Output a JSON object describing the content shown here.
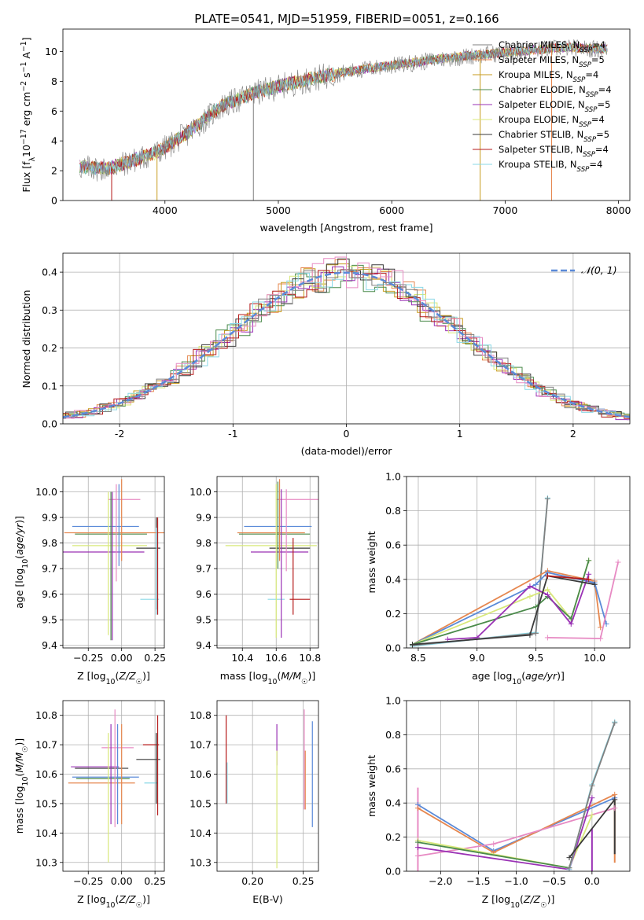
{
  "figure_title": "PLATE=0541, MJD=51959, FIBERID=0051, z=0.166",
  "model_colors": [
    "#808080",
    "#e6874f",
    "#c79b1e",
    "#4a8a4a",
    "#9a32b5",
    "#d8e87a",
    "#3a3a3a",
    "#b51a1a",
    "#8ad8e6"
  ],
  "chart_data": [
    {
      "id": "spectrum",
      "type": "line",
      "xlabel": "wavelength [Angstrom, rest frame]",
      "ylabel": "Flux [f_λ 10^-17 erg cm^-2 s^-1 A^-1]",
      "xlim": [
        3100,
        8100
      ],
      "ylim": [
        0,
        11.5
      ],
      "xticks": [
        4000,
        5000,
        6000,
        7000,
        8000
      ],
      "yticks": [
        0,
        2,
        4,
        6,
        8,
        10
      ],
      "grid": false,
      "legend_position": "top-right",
      "wavelength_range": [
        3250,
        7900
      ],
      "continuum": {
        "x": [
          3250,
          3500,
          3700,
          3900,
          4000,
          4200,
          4500,
          4800,
          5100,
          5400,
          5800,
          6100,
          6500,
          6900,
          7200,
          7500,
          7900
        ],
        "y": [
          2.3,
          2.2,
          2.7,
          3.2,
          3.6,
          4.6,
          6.4,
          7.3,
          7.9,
          8.4,
          8.9,
          9.2,
          9.6,
          9.9,
          10.1,
          10.3,
          10.2
        ]
      },
      "spikes": [
        {
          "x": 3530,
          "ymin": 0,
          "series": 7
        },
        {
          "x": 3930,
          "ymin": 0,
          "series": 2
        },
        {
          "x": 4780,
          "ymin": 0,
          "series": 0
        },
        {
          "x": 6780,
          "ymin": 0,
          "series": 2
        },
        {
          "x": 7410,
          "ymin": 0,
          "series": 1
        }
      ],
      "series": [
        {
          "name": "Chabrier MILES, N",
          "sub": "SSP",
          "suffix": "=4"
        },
        {
          "name": "Salpeter MILES, N",
          "sub": "SSP",
          "suffix": "=5"
        },
        {
          "name": "Kroupa MILES, N",
          "sub": "SSP",
          "suffix": "=4"
        },
        {
          "name": "Chabrier ELODIE, N",
          "sub": "SSP",
          "suffix": "=4"
        },
        {
          "name": "Salpeter ELODIE, N",
          "sub": "SSP",
          "suffix": "=5"
        },
        {
          "name": "Kroupa ELODIE, N",
          "sub": "SSP",
          "suffix": "=4"
        },
        {
          "name": "Chabrier STELIB, N",
          "sub": "SSP",
          "suffix": "=5"
        },
        {
          "name": "Salpeter STELIB, N",
          "sub": "SSP",
          "suffix": "=4"
        },
        {
          "name": "Kroupa STELIB, N",
          "sub": "SSP",
          "suffix": "=4"
        }
      ]
    },
    {
      "id": "residuals",
      "type": "line",
      "xlabel": "(data-model)/error",
      "ylabel": "Normed distribution",
      "xlim": [
        -2.5,
        2.5
      ],
      "ylim": [
        0,
        0.45
      ],
      "xticks": [
        -2,
        -1,
        0,
        1,
        2
      ],
      "yticks": [
        0.0,
        0.1,
        0.2,
        0.3,
        0.4
      ],
      "grid": true,
      "legend_position": "top-right",
      "histogram_bin_width": 0.1,
      "gaussian": {
        "name": "𝒩(0, 1)",
        "mean": 0,
        "sigma": 1,
        "color": "#5a8ad8"
      },
      "histogram_colors": [
        "#e6874f",
        "#c79b1e",
        "#4a8a4a",
        "#9a32b5",
        "#d8e87a",
        "#3a3a3a",
        "#b51a1a",
        "#8ad8e6",
        "#e78ac3",
        "#808080"
      ]
    },
    {
      "id": "age_vs_Z",
      "type": "scatter",
      "xlabel": "Z [log10(Z/Z☉)]",
      "ylabel": "age [log10(age/yr)]",
      "xlim": [
        -0.44,
        0.32
      ],
      "ylim": [
        9.39,
        10.06
      ],
      "xticks": [
        -0.25,
        0.0,
        0.25
      ],
      "xtick_labels": [
        "−0.25",
        "0.00",
        "0.25"
      ],
      "yticks": [
        9.4,
        9.5,
        9.6,
        9.7,
        9.8,
        9.9,
        10.0
      ],
      "grid": true,
      "points": [
        {
          "x": -0.12,
          "xerr": 0.25,
          "y": 9.865,
          "yerr": 0.0,
          "color": "#5a8ad8"
        },
        {
          "x": -0.05,
          "xerr": 0.38,
          "y": 9.84,
          "yerr": 0.0,
          "color": "#e6874f"
        },
        {
          "x": -0.08,
          "xerr": 0.27,
          "y": 9.835,
          "yerr": 0.0,
          "color": "#4a8a4a"
        },
        {
          "x": -0.09,
          "xerr": 0.28,
          "y": 9.79,
          "yerr": 0.0,
          "color": "#d8e87a"
        },
        {
          "x": -0.18,
          "xerr": 0.35,
          "y": 9.765,
          "yerr": 0.0,
          "color": "#9a32b5"
        },
        {
          "x": 0.02,
          "xerr": 0.12,
          "y": 9.97,
          "yerr": 0.0,
          "color": "#e78ac3"
        },
        {
          "x": 0.2,
          "xerr": 0.09,
          "y": 9.78,
          "yerr": 0.0,
          "color": "#3a3a3a"
        },
        {
          "x": 0.21,
          "xerr": 0.07,
          "y": 9.58,
          "yerr": 0.0,
          "color": "#8ad8e6"
        },
        {
          "x": -0.1,
          "xerr": 0.0,
          "y": 9.72,
          "yerr": 0.28,
          "color": "#d8e87a"
        },
        {
          "x": -0.08,
          "xerr": 0.0,
          "y": 9.71,
          "yerr": 0.29,
          "color": "#4a8a4a"
        },
        {
          "x": -0.07,
          "xerr": 0.0,
          "y": 9.71,
          "yerr": 0.29,
          "color": "#9a32b5"
        },
        {
          "x": -0.04,
          "xerr": 0.0,
          "y": 9.84,
          "yerr": 0.19,
          "color": "#e78ac3"
        },
        {
          "x": -0.02,
          "xerr": 0.0,
          "y": 9.87,
          "yerr": 0.16,
          "color": "#5a8ad8"
        },
        {
          "x": 0.0,
          "xerr": 0.0,
          "y": 9.89,
          "yerr": 0.16,
          "color": "#e6874f"
        },
        {
          "x": 0.26,
          "xerr": 0.0,
          "y": 9.72,
          "yerr": 0.18,
          "color": "#3a3a3a"
        },
        {
          "x": 0.27,
          "xerr": 0.0,
          "y": 9.71,
          "yerr": 0.19,
          "color": "#b51a1a"
        },
        {
          "x": 0.26,
          "xerr": 0.0,
          "y": 9.69,
          "yerr": 0.17,
          "color": "#8ad8e6"
        }
      ]
    },
    {
      "id": "age_vs_mass",
      "type": "scatter",
      "xlabel": "mass [log10(M/M☉)]",
      "ylabel": "",
      "xlim": [
        10.25,
        10.85
      ],
      "ylim": [
        9.39,
        10.06
      ],
      "xticks": [
        10.4,
        10.6,
        10.8
      ],
      "xtick_labels": [
        "10.4",
        "10.6",
        "10.8"
      ],
      "yticks": [
        9.4,
        9.5,
        9.6,
        9.7,
        9.8,
        9.9,
        10.0
      ],
      "grid": true,
      "points": [
        {
          "x": 10.61,
          "xerr": 0.2,
          "y": 9.865,
          "yerr": 0.0,
          "color": "#5a8ad8"
        },
        {
          "x": 10.57,
          "xerr": 0.2,
          "y": 9.84,
          "yerr": 0.0,
          "color": "#e6874f"
        },
        {
          "x": 10.59,
          "xerr": 0.21,
          "y": 9.835,
          "yerr": 0.0,
          "color": "#4a8a4a"
        },
        {
          "x": 10.57,
          "xerr": 0.27,
          "y": 9.79,
          "yerr": 0.0,
          "color": "#d8e87a"
        },
        {
          "x": 10.62,
          "xerr": 0.17,
          "y": 9.765,
          "yerr": 0.0,
          "color": "#9a32b5"
        },
        {
          "x": 10.75,
          "xerr": 0.15,
          "y": 9.97,
          "yerr": 0.0,
          "color": "#e78ac3"
        },
        {
          "x": 10.68,
          "xerr": 0.12,
          "y": 9.78,
          "yerr": 0.0,
          "color": "#3a3a3a"
        },
        {
          "x": 10.74,
          "xerr": 0.06,
          "y": 9.58,
          "yerr": 0.0,
          "color": "#b51a1a"
        },
        {
          "x": 10.6,
          "xerr": 0.05,
          "y": 9.58,
          "yerr": 0.0,
          "color": "#8ad8e6"
        },
        {
          "x": 10.6,
          "xerr": 0.0,
          "y": 9.73,
          "yerr": 0.3,
          "color": "#d8e87a"
        },
        {
          "x": 10.61,
          "xerr": 0.0,
          "y": 9.87,
          "yerr": 0.17,
          "color": "#4a8a4a"
        },
        {
          "x": 10.63,
          "xerr": 0.0,
          "y": 9.72,
          "yerr": 0.29,
          "color": "#9a32b5"
        },
        {
          "x": 10.66,
          "xerr": 0.0,
          "y": 9.85,
          "yerr": 0.16,
          "color": "#e78ac3"
        },
        {
          "x": 10.62,
          "xerr": 0.0,
          "y": 9.89,
          "yerr": 0.16,
          "color": "#e6874f"
        },
        {
          "x": 10.7,
          "xerr": 0.0,
          "y": 9.67,
          "yerr": 0.15,
          "color": "#b51a1a"
        }
      ]
    },
    {
      "id": "weight_vs_age",
      "type": "line",
      "xlabel": "age [log10(age/yr)]",
      "ylabel": "mass weight",
      "xlim": [
        8.4,
        10.3
      ],
      "ylim": [
        0,
        1.0
      ],
      "xticks": [
        8.5,
        9.0,
        9.5,
        10.0
      ],
      "xtick_labels": [
        "8.5",
        "9.0",
        "9.5",
        "10.0"
      ],
      "yticks": [
        0.0,
        0.2,
        0.4,
        0.6,
        0.8,
        1.0
      ],
      "grid": true,
      "series": [
        {
          "color": "#8ad8e6",
          "x": [
            8.45,
            9.5,
            9.6
          ],
          "y": [
            0.01,
            0.09,
            0.875
          ]
        },
        {
          "color": "#808080",
          "x": [
            8.45,
            9.5,
            9.6
          ],
          "y": [
            0.015,
            0.085,
            0.87
          ]
        },
        {
          "color": "#e6874f",
          "x": [
            8.45,
            9.6,
            10.0,
            10.05
          ],
          "y": [
            0.02,
            0.45,
            0.39,
            0.12
          ]
        },
        {
          "color": "#5a8ad8",
          "x": [
            8.45,
            9.5,
            9.6,
            10.0,
            10.1
          ],
          "y": [
            0.02,
            0.37,
            0.44,
            0.38,
            0.14
          ]
        },
        {
          "color": "#d8e87a",
          "x": [
            8.45,
            9.45,
            9.6,
            9.8,
            9.95
          ],
          "y": [
            0.02,
            0.3,
            0.34,
            0.17,
            0.51
          ]
        },
        {
          "color": "#4a8a4a",
          "x": [
            8.45,
            9.5,
            9.6,
            9.8,
            9.95
          ],
          "y": [
            0.02,
            0.24,
            0.3,
            0.17,
            0.51
          ]
        },
        {
          "color": "#9a32b5",
          "x": [
            8.75,
            9.0,
            9.45,
            9.6,
            9.8,
            9.95
          ],
          "y": [
            0.05,
            0.06,
            0.36,
            0.31,
            0.14,
            0.43
          ]
        },
        {
          "color": "#3a3a3a",
          "x": [
            8.45,
            9.45,
            9.6,
            10.0
          ],
          "y": [
            0.02,
            0.075,
            0.42,
            0.37
          ]
        },
        {
          "color": "#e78ac3",
          "x": [
            9.6,
            10.05,
            10.2
          ],
          "y": [
            0.06,
            0.055,
            0.5
          ]
        },
        {
          "color": "#b51a1a",
          "x": [
            9.6,
            9.95
          ],
          "y": [
            0.42,
            0.4
          ]
        }
      ]
    },
    {
      "id": "mass_vs_Z",
      "type": "scatter",
      "xlabel": "Z [log10(Z/Z☉)]",
      "ylabel": "mass [log10(M/M☉)]",
      "xlim": [
        -0.44,
        0.32
      ],
      "ylim": [
        10.27,
        10.85
      ],
      "xticks": [
        -0.25,
        0.0,
        0.25
      ],
      "xtick_labels": [
        "−0.25",
        "0.00",
        "0.25"
      ],
      "yticks": [
        10.3,
        10.4,
        10.5,
        10.6,
        10.7,
        10.8
      ],
      "grid": true,
      "points": [
        {
          "x": -0.2,
          "xerr": 0.18,
          "y": 10.625,
          "yerr": 0.0,
          "color": "#9a32b5"
        },
        {
          "x": -0.15,
          "xerr": 0.2,
          "y": 10.62,
          "yerr": 0.0,
          "color": "#3a3a3a"
        },
        {
          "x": -0.12,
          "xerr": 0.25,
          "y": 10.59,
          "yerr": 0.0,
          "color": "#5a8ad8"
        },
        {
          "x": -0.14,
          "xerr": 0.2,
          "y": 10.585,
          "yerr": 0.0,
          "color": "#4a8a4a"
        },
        {
          "x": -0.15,
          "xerr": 0.25,
          "y": 10.57,
          "yerr": 0.0,
          "color": "#e6874f"
        },
        {
          "x": -0.03,
          "xerr": 0.12,
          "y": 10.69,
          "yerr": 0.0,
          "color": "#e78ac3"
        },
        {
          "x": 0.2,
          "xerr": 0.09,
          "y": 10.65,
          "yerr": 0.0,
          "color": "#3a3a3a"
        },
        {
          "x": 0.22,
          "xerr": 0.06,
          "y": 10.7,
          "yerr": 0.0,
          "color": "#b51a1a"
        },
        {
          "x": 0.22,
          "xerr": 0.05,
          "y": 10.57,
          "yerr": 0.0,
          "color": "#8ad8e6"
        },
        {
          "x": -0.1,
          "xerr": 0.0,
          "y": 10.52,
          "yerr": 0.22,
          "color": "#d8e87a"
        },
        {
          "x": -0.08,
          "xerr": 0.0,
          "y": 10.6,
          "yerr": 0.17,
          "color": "#9a32b5"
        },
        {
          "x": -0.05,
          "xerr": 0.0,
          "y": 10.62,
          "yerr": 0.2,
          "color": "#e78ac3"
        },
        {
          "x": -0.03,
          "xerr": 0.0,
          "y": 10.6,
          "yerr": 0.17,
          "color": "#5a8ad8"
        },
        {
          "x": 0.0,
          "xerr": 0.0,
          "y": 10.6,
          "yerr": 0.17,
          "color": "#e6874f"
        },
        {
          "x": 0.26,
          "xerr": 0.0,
          "y": 10.62,
          "yerr": 0.12,
          "color": "#3a3a3a"
        },
        {
          "x": 0.27,
          "xerr": 0.0,
          "y": 10.63,
          "yerr": 0.17,
          "color": "#b51a1a"
        }
      ]
    },
    {
      "id": "mass_vs_EBV",
      "type": "scatter",
      "xlabel": "E(B-V)",
      "ylabel": "",
      "xlim": [
        0.165,
        0.265
      ],
      "ylim": [
        10.27,
        10.85
      ],
      "xticks": [
        0.2,
        0.25
      ],
      "xtick_labels": [
        "0.20",
        "0.25"
      ],
      "yticks": [
        10.3,
        10.4,
        10.5,
        10.6,
        10.7,
        10.8
      ],
      "grid": true,
      "points": [
        {
          "x": 0.174,
          "xerr": 0.0,
          "y": 10.65,
          "yerr": 0.15,
          "color": "#b51a1a"
        },
        {
          "x": 0.175,
          "xerr": 0.0,
          "y": 10.57,
          "yerr": 0.07,
          "color": "#8ad8e6"
        },
        {
          "x": 0.224,
          "xerr": 0.0,
          "y": 10.7,
          "yerr": 0.07,
          "color": "#9a32b5"
        },
        {
          "x": 0.224,
          "xerr": 0.0,
          "y": 10.48,
          "yerr": 0.2,
          "color": "#d8e87a"
        },
        {
          "x": 0.251,
          "xerr": 0.0,
          "y": 10.65,
          "yerr": 0.17,
          "color": "#e78ac3"
        },
        {
          "x": 0.252,
          "xerr": 0.0,
          "y": 10.58,
          "yerr": 0.1,
          "color": "#e6874f"
        },
        {
          "x": 0.259,
          "xerr": 0.0,
          "y": 10.6,
          "yerr": 0.18,
          "color": "#5a8ad8"
        }
      ]
    },
    {
      "id": "weight_vs_Z",
      "type": "line",
      "xlabel": "Z [log10(Z/Z☉)]",
      "ylabel": "mass weight",
      "xlim": [
        -2.45,
        0.5
      ],
      "ylim": [
        0,
        1.0
      ],
      "xticks": [
        -2.0,
        -1.5,
        -1.0,
        -0.5,
        0.0
      ],
      "xtick_labels": [
        "−2.0",
        "−1.5",
        "−1.0",
        "−0.5",
        "0.0"
      ],
      "yticks": [
        0.0,
        0.2,
        0.4,
        0.6,
        0.8,
        1.0
      ],
      "grid": true,
      "series": [
        {
          "color": "#5a8ad8",
          "x": [
            -2.3,
            -1.3,
            0.3
          ],
          "y": [
            0.39,
            0.12,
            0.43
          ]
        },
        {
          "color": "#e6874f",
          "x": [
            -2.3,
            -1.3,
            0.3
          ],
          "y": [
            0.37,
            0.11,
            0.45
          ]
        },
        {
          "color": "#e78ac3",
          "x": [
            -2.3,
            -1.3,
            0.3
          ],
          "y": [
            0.09,
            0.16,
            0.37
          ]
        },
        {
          "color": "#d8e87a",
          "x": [
            -2.3,
            -0.3,
            0.0
          ],
          "y": [
            0.18,
            0.02,
            0.33
          ]
        },
        {
          "color": "#4a8a4a",
          "x": [
            -2.3,
            -0.3,
            0.0
          ],
          "y": [
            0.17,
            0.02,
            0.5
          ]
        },
        {
          "color": "#9a32b5",
          "x": [
            -2.3,
            -0.3,
            0.0
          ],
          "y": [
            0.14,
            0.01,
            0.43
          ]
        },
        {
          "color": "#8ad8e6",
          "x": [
            -0.3,
            0.0,
            0.3
          ],
          "y": [
            0.01,
            0.51,
            0.875
          ]
        },
        {
          "color": "#808080",
          "x": [
            -0.3,
            0.0,
            0.3
          ],
          "y": [
            0.02,
            0.5,
            0.87
          ]
        },
        {
          "color": "#3a3a3a",
          "x": [
            -0.3,
            0.3
          ],
          "y": [
            0.08,
            0.42
          ]
        }
      ],
      "vertical_bars": [
        {
          "x": -2.3,
          "ymin": 0.0,
          "ymax": 0.49,
          "color": "#e78ac3"
        },
        {
          "x": 0.0,
          "ymin": 0.0,
          "ymax": 0.25,
          "color": "#9a32b5"
        },
        {
          "x": 0.3,
          "ymin": 0.05,
          "ymax": 0.45,
          "color": "#e6874f"
        },
        {
          "x": 0.3,
          "ymin": 0.1,
          "ymax": 0.42,
          "color": "#3a3a3a"
        }
      ]
    }
  ]
}
